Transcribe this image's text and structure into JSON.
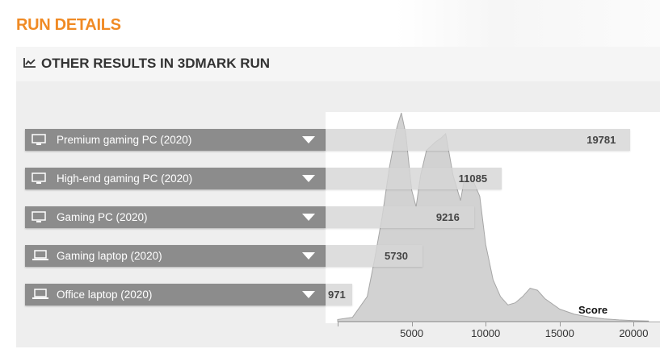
{
  "page": {
    "title": "RUN DETAILS",
    "accent_color": "#f08a24"
  },
  "panel": {
    "title": "OTHER RESULTS IN 3DMARK RUN",
    "icon": "line-chart-icon"
  },
  "rows": [
    {
      "label": "Premium gaming PC (2020)",
      "score": "19781",
      "icon": "desktop-pc-icon"
    },
    {
      "label": "High-end gaming PC (2020)",
      "score": "11085",
      "icon": "desktop-pc-icon"
    },
    {
      "label": "Gaming PC (2020)",
      "score": "9216",
      "icon": "desktop-pc-icon"
    },
    {
      "label": "Gaming laptop (2020)",
      "score": "5730",
      "icon": "laptop-icon"
    },
    {
      "label": "Office laptop (2020)",
      "score": "971",
      "icon": "laptop-icon"
    }
  ],
  "chart_data": {
    "type": "area",
    "xlabel": "Score",
    "ylabel": "",
    "xlim": [
      0,
      21000
    ],
    "x_ticks": [
      "5000",
      "10000",
      "15000",
      "20000"
    ],
    "grid": false,
    "series": [
      {
        "x": [
          0,
          1000,
          2000,
          2500,
          3000,
          3500,
          4000,
          4300,
          4600,
          5000,
          5300,
          5600,
          6000,
          6600,
          7000,
          7300,
          7800,
          8300,
          8600,
          9000,
          9600,
          10000,
          10500,
          11000,
          11500,
          12000,
          12500,
          13000,
          13500,
          14000,
          15000,
          16000,
          17000,
          18000,
          19000,
          20000,
          21000
        ],
        "y": [
          0.01,
          0.02,
          0.12,
          0.3,
          0.5,
          0.74,
          0.93,
          1.0,
          0.9,
          0.63,
          0.55,
          0.7,
          0.82,
          0.86,
          0.88,
          0.9,
          0.7,
          0.58,
          0.7,
          0.7,
          0.6,
          0.37,
          0.2,
          0.12,
          0.08,
          0.09,
          0.12,
          0.16,
          0.15,
          0.11,
          0.06,
          0.035,
          0.022,
          0.013,
          0.008,
          0.005,
          0.003
        ]
      }
    ]
  }
}
